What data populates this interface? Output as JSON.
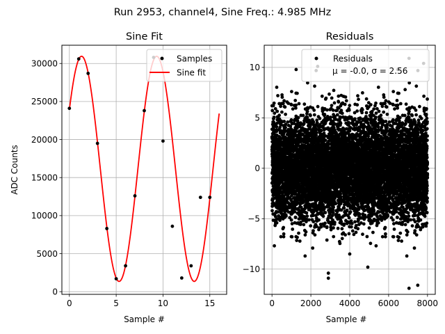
{
  "suptitle": "Run 2953, channel4, Sine Freq.: 4.985 MHz",
  "chart_data": [
    {
      "type": "line",
      "title": "Sine Fit",
      "xlabel": "Sample #",
      "ylabel": "ADC Counts",
      "xlim": [
        -0.8,
        16.8
      ],
      "ylim": [
        -350,
        32400
      ],
      "xticks": [
        0,
        5,
        10,
        15
      ],
      "xtick_labels": [
        "0",
        "5",
        "10",
        "15"
      ],
      "yticks": [
        0,
        5000,
        10000,
        15000,
        20000,
        25000,
        30000
      ],
      "ytick_labels": [
        "0",
        "5000",
        "10000",
        "15000",
        "20000",
        "25000",
        "30000"
      ],
      "grid": true,
      "legend": {
        "position": "top-right",
        "entries": [
          "Samples",
          "Sine fit"
        ]
      },
      "series": [
        {
          "name": "Samples",
          "kind": "scatter",
          "color": "#000000",
          "x": [
            0,
            1,
            2,
            3,
            4,
            5,
            6,
            7,
            8,
            9,
            10,
            11,
            12,
            13,
            14,
            15
          ],
          "y": [
            24100,
            30600,
            28700,
            19500,
            8300,
            1700,
            3400,
            12600,
            23800,
            30800,
            19800,
            8600,
            1800,
            3400,
            12400,
            12400
          ]
        },
        {
          "name": "Sine fit",
          "kind": "line",
          "color": "#ff0000",
          "model": {
            "offset": 16150,
            "amplitude": 14800,
            "period": 8.025,
            "x_peak": 1.3,
            "x_start": 0,
            "x_end": 16
          }
        }
      ]
    },
    {
      "type": "scatter",
      "title": "Residuals",
      "xlabel": "Sample #",
      "ylabel": "",
      "xlim": [
        -400,
        8400
      ],
      "ylim": [
        -12.5,
        12.2
      ],
      "xticks": [
        0,
        2000,
        4000,
        6000,
        8000
      ],
      "xtick_labels": [
        "0",
        "2000",
        "4000",
        "6000",
        "8000"
      ],
      "yticks": [
        -10,
        -5,
        0,
        5,
        10
      ],
      "ytick_labels": [
        "−10",
        "−5",
        "0",
        "5",
        "10"
      ],
      "grid": true,
      "legend": {
        "position": "top-right",
        "label": "Residuals",
        "stats": "μ = -0.0, σ = 2.56"
      },
      "series": [
        {
          "name": "Residuals",
          "color": "#000000",
          "n_points": 8000,
          "x_range": [
            0,
            7999
          ],
          "mean": 0.0,
          "std": 2.56,
          "notable_points": [
            [
              2350,
              10.1
            ],
            [
              2900,
              -10.4
            ],
            [
              2900,
              -10.9
            ],
            [
              7050,
              10.9
            ],
            [
              7050,
              -11.9
            ],
            [
              7500,
              -11.6
            ],
            [
              7800,
              10.4
            ],
            [
              300,
              7.2
            ],
            [
              4000,
              -8.5
            ],
            [
              6850,
              7.8
            ]
          ]
        }
      ]
    }
  ]
}
